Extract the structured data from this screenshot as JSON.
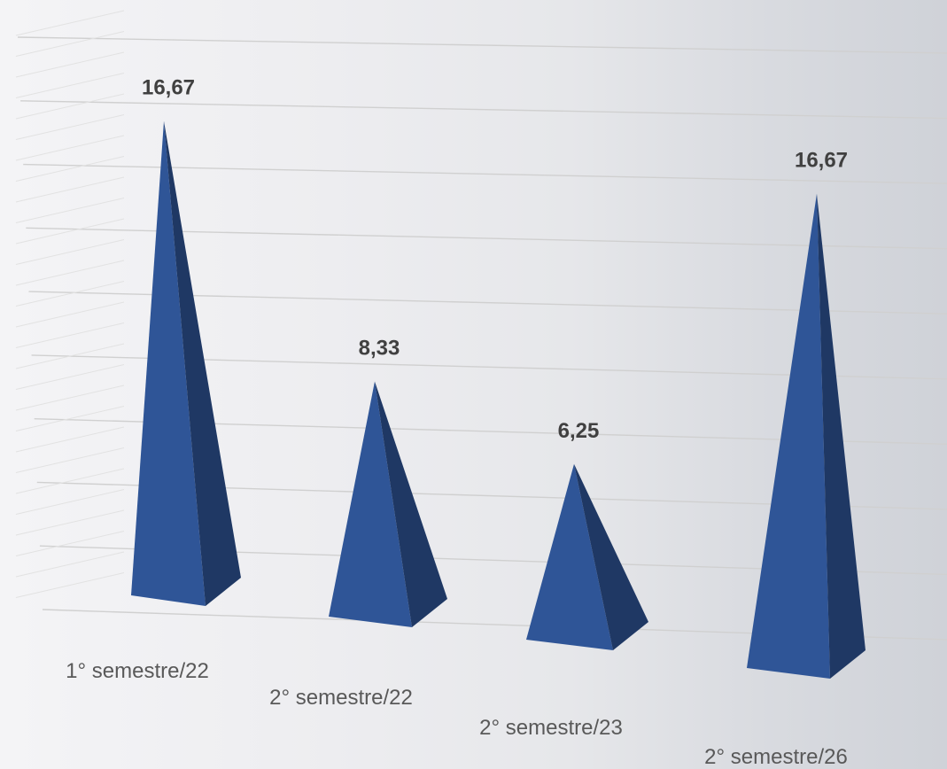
{
  "chart_data": {
    "type": "bar",
    "subtype": "3d-pyramid",
    "categories": [
      "1° semestre/22",
      "2° semestre/22",
      "2° semestre/23",
      "2° semestre/26"
    ],
    "values": [
      16.67,
      8.33,
      6.25,
      16.67
    ],
    "data_labels": [
      "16,67",
      "8,33",
      "6,25",
      "16,67"
    ],
    "title": "",
    "xlabel": "",
    "ylabel": "",
    "ylim": [
      0,
      18
    ],
    "grid": true,
    "legend": "none",
    "colors": {
      "face_front": "#2f5597",
      "face_side": "#1f3864",
      "gridline": "#d0d0d0"
    }
  }
}
